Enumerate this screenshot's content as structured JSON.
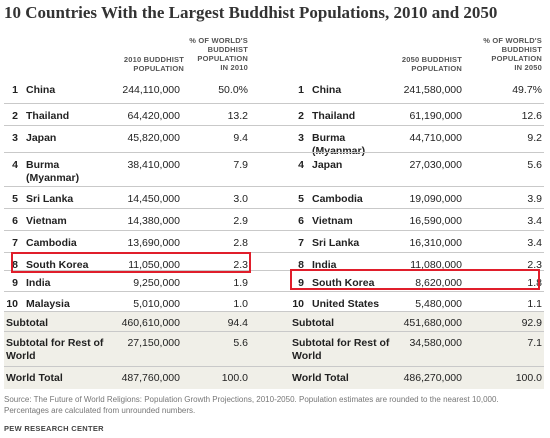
{
  "title": "10 Countries With the Largest Buddhist Populations, 2010 and 2050",
  "headers": {
    "pop2010": "2010 BUDDHIST\nPOPULATION",
    "pct2010": "% OF WORLD'S\nBUDDHIST\nPOPULATION\nIN 2010",
    "pop2050": "2050 BUDDHIST\nPOPULATION",
    "pct2050": "% OF WORLD'S\nBUDDHIST\nPOPULATION\nIN 2050"
  },
  "rows": [
    {
      "l_rank": "1",
      "l_country": "China",
      "l_pop": "244,110,000",
      "l_pct": "50.0%",
      "r_rank": "1",
      "r_country": "China",
      "r_pop": "241,580,000",
      "r_pct": "49.7%"
    },
    {
      "l_rank": "2",
      "l_country": "Thailand",
      "l_pop": "64,420,000",
      "l_pct": "13.2",
      "r_rank": "2",
      "r_country": "Thailand",
      "r_pop": "61,190,000",
      "r_pct": "12.6"
    },
    {
      "l_rank": "3",
      "l_country": "Japan",
      "l_pop": "45,820,000",
      "l_pct": "9.4",
      "r_rank": "3",
      "r_country": "Burma (Myanmar)",
      "r_pop": "44,710,000",
      "r_pct": "9.2"
    },
    {
      "l_rank": "4",
      "l_country": "Burma (Myanmar)",
      "l_pop": "38,410,000",
      "l_pct": "7.9",
      "r_rank": "4",
      "r_country": "Japan",
      "r_pop": "27,030,000",
      "r_pct": "5.6"
    },
    {
      "l_rank": "5",
      "l_country": "Sri Lanka",
      "l_pop": "14,450,000",
      "l_pct": "3.0",
      "r_rank": "5",
      "r_country": "Cambodia",
      "r_pop": "19,090,000",
      "r_pct": "3.9"
    },
    {
      "l_rank": "6",
      "l_country": "Vietnam",
      "l_pop": "14,380,000",
      "l_pct": "2.9",
      "r_rank": "6",
      "r_country": "Vietnam",
      "r_pop": "16,590,000",
      "r_pct": "3.4"
    },
    {
      "l_rank": "7",
      "l_country": "Cambodia",
      "l_pop": "13,690,000",
      "l_pct": "2.8",
      "r_rank": "7",
      "r_country": "Sri Lanka",
      "r_pop": "16,310,000",
      "r_pct": "3.4"
    },
    {
      "l_rank": "8",
      "l_country": "South Korea",
      "l_pop": "11,050,000",
      "l_pct": "2.3",
      "r_rank": "8",
      "r_country": "India",
      "r_pop": "11,080,000",
      "r_pct": "2.3"
    },
    {
      "l_rank": "9",
      "l_country": "India",
      "l_pop": "9,250,000",
      "l_pct": "1.9",
      "r_rank": "9",
      "r_country": "South Korea",
      "r_pop": "8,620,000",
      "r_pct": "1.8"
    },
    {
      "l_rank": "10",
      "l_country": "Malaysia",
      "l_pop": "5,010,000",
      "l_pct": "1.0",
      "r_rank": "10",
      "r_country": "United States",
      "r_pop": "5,480,000",
      "r_pct": "1.1"
    }
  ],
  "totals": [
    {
      "l_label": "Subtotal",
      "l_pop": "460,610,000",
      "l_pct": "94.4",
      "r_label": "Subtotal",
      "r_pop": "451,680,000",
      "r_pct": "92.9"
    },
    {
      "l_label": "Subtotal for Rest of World",
      "l_pop": "27,150,000",
      "l_pct": "5.6",
      "r_label": "Subtotal for Rest of World",
      "r_pop": "34,580,000",
      "r_pct": "7.1"
    },
    {
      "l_label": "World Total",
      "l_pop": "487,760,000",
      "l_pct": "100.0",
      "r_label": "World Total",
      "r_pop": "486,270,000",
      "r_pct": "100.0"
    }
  ],
  "highlight_color": "#e01e2b",
  "note": "Source: The Future of World Religions: Population Growth Projections, 2010-2050. Population estimates are rounded to the nearest 10,000. Percentages are calculated from unrounded numbers.",
  "source_org": "PEW RESEARCH CENTER"
}
